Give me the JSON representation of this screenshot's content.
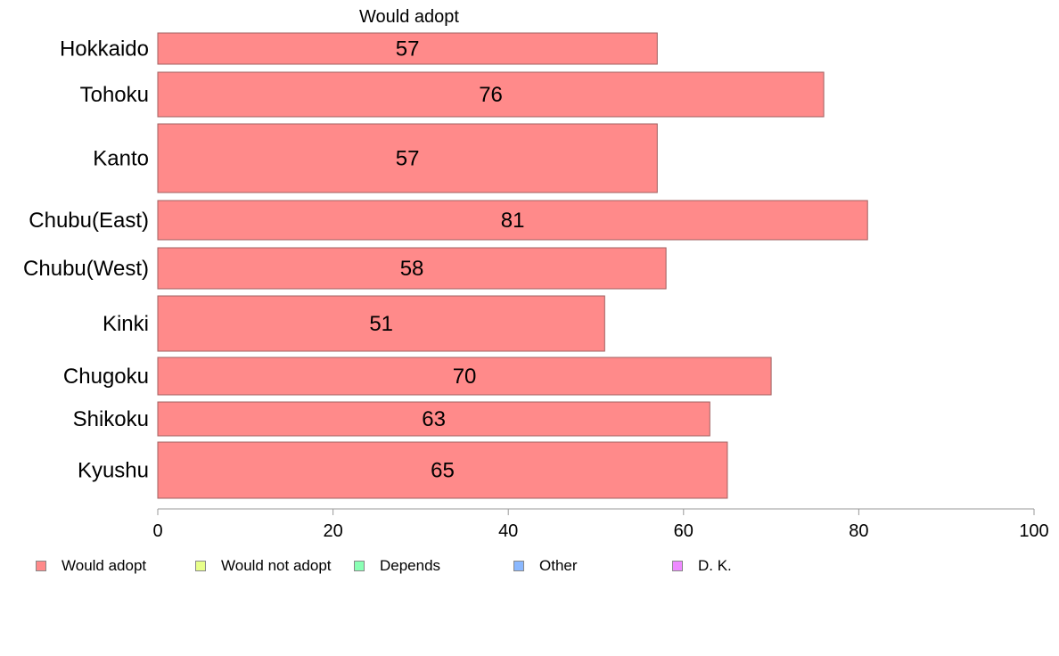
{
  "chart_data": {
    "type": "bar",
    "orientation": "horizontal",
    "title": "Would adopt",
    "categories": [
      "Hokkaido",
      "Tohoku",
      "Kanto",
      "Chubu(East)",
      "Chubu(West)",
      "Kinki",
      "Chugoku",
      "Shikoku",
      "Kyushu"
    ],
    "series": [
      {
        "name": "Would adopt",
        "values": [
          57,
          76,
          57,
          81,
          58,
          51,
          70,
          63,
          65
        ],
        "color": "#ff8a8a"
      }
    ],
    "data_labels": [
      "57",
      "76",
      "57",
      "81",
      "58",
      "51",
      "70",
      "63",
      "65"
    ],
    "xlim": [
      0,
      100
    ],
    "x_ticks": [
      0,
      20,
      40,
      60,
      80,
      100
    ],
    "x_tick_labels": [
      "0",
      "20",
      "40",
      "60",
      "80",
      "100"
    ],
    "grid": false,
    "legend_position": "bottom-left",
    "legend": [
      {
        "label": "Would adopt",
        "color": "#ff8a8a"
      },
      {
        "label": "Would not adopt",
        "color": "#e8ff8a"
      },
      {
        "label": "Depends",
        "color": "#8affb4"
      },
      {
        "label": "Other",
        "color": "#8ab8ff"
      },
      {
        "label": "D. K.",
        "color": "#ee8aff"
      }
    ]
  }
}
